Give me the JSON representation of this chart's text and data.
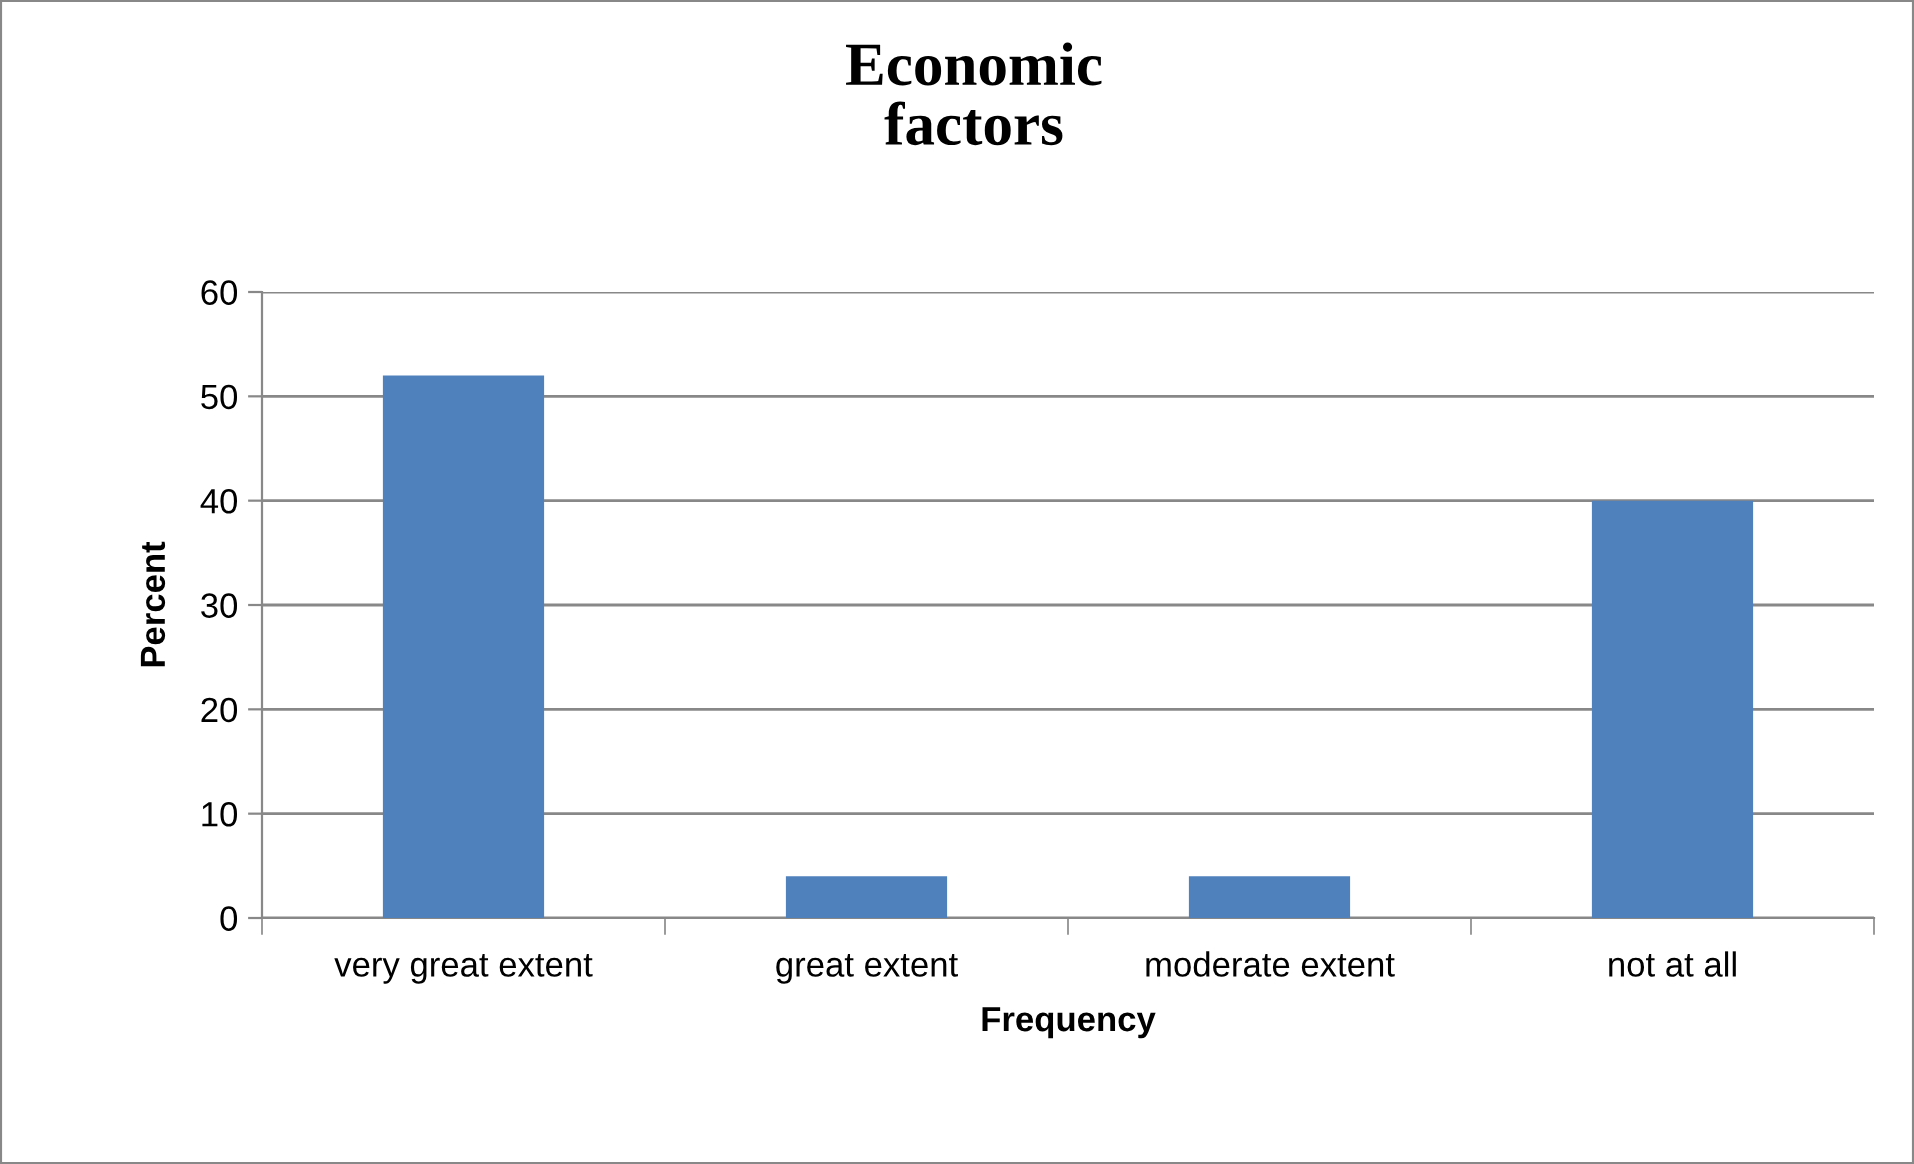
{
  "chart_data": {
    "type": "bar",
    "title": "Economic\nfactors",
    "xlabel": "Frequency",
    "ylabel": "Percent",
    "categories": [
      "very great extent",
      "great extent",
      "moderate extent",
      "not at all"
    ],
    "values": [
      52,
      4,
      4,
      40
    ],
    "color": "#4f81bd",
    "ylim": [
      0,
      60
    ],
    "yticks": [
      0,
      10,
      20,
      30,
      40,
      50,
      60
    ],
    "grid": "y",
    "legend": false
  }
}
